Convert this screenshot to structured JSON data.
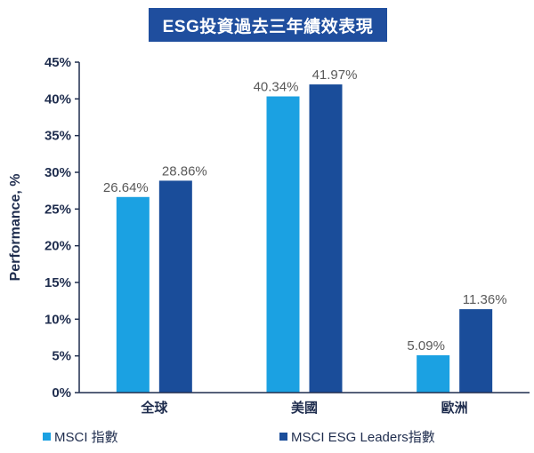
{
  "colors": {
    "title_bg": "#1f4e9e",
    "series1": "#1ba1e2",
    "series2": "#1a4d9a",
    "axis": "#1f2d4e"
  },
  "chart_data": {
    "type": "bar",
    "title": "ESG投資過去三年績效表現",
    "ylabel": "Performance, %",
    "xlabel": "",
    "categories": [
      "全球",
      "美國",
      "歐洲"
    ],
    "series": [
      {
        "name": "MSCI 指數",
        "values": [
          26.64,
          40.34,
          5.09
        ],
        "labels": [
          "26.64%",
          "40.34%",
          "5.09%"
        ]
      },
      {
        "name": "MSCI ESG Leaders指數",
        "values": [
          28.86,
          41.97,
          11.36
        ],
        "labels": [
          "28.86%",
          "41.97%",
          "11.36%"
        ]
      }
    ],
    "ylim": [
      0,
      45
    ],
    "yticks": [
      0,
      5,
      10,
      15,
      20,
      25,
      30,
      35,
      40,
      45
    ],
    "ytick_labels": [
      "0%",
      "5%",
      "10%",
      "15%",
      "20%",
      "25%",
      "30%",
      "35%",
      "40%",
      "45%"
    ],
    "grid": false,
    "legend": "bottom"
  }
}
